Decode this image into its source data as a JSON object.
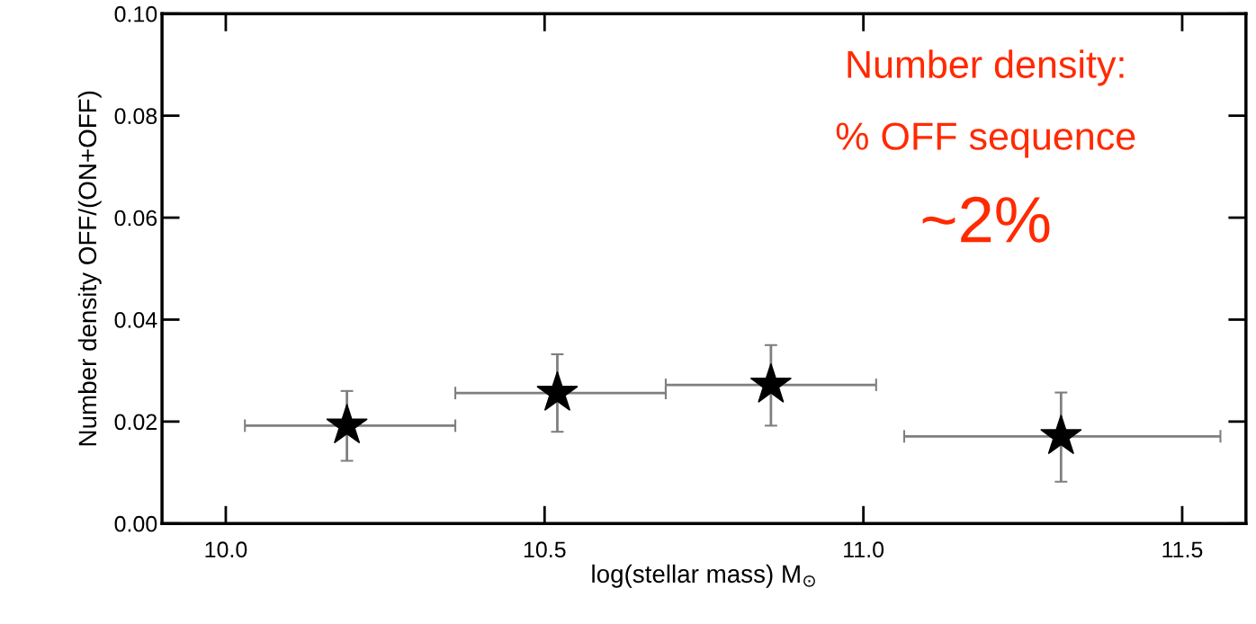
{
  "chart_data": {
    "type": "scatter",
    "xlabel": "log(stellar mass) M$_{⊙}$",
    "ylabel": "Number density OFF/(ON+OFF)",
    "x": [
      10.19,
      10.52,
      10.855,
      11.31
    ],
    "series": [
      {
        "color": "#000000",
        "values": [
          0.0192,
          0.0256,
          0.0272,
          0.0171
        ],
        "errors": [
          [
            0.0123,
            0.026
          ],
          [
            0.018,
            0.0332
          ],
          [
            0.0192,
            0.035
          ],
          [
            0.0082,
            0.0257
          ]
        ],
        "xerrors": [
          [
            10.03,
            10.36
          ],
          [
            10.36,
            10.69
          ],
          [
            10.69,
            11.02
          ],
          [
            11.064,
            11.56
          ]
        ]
      }
    ],
    "marker": "star",
    "xlim": [
      9.9,
      11.6
    ],
    "xticks": [
      {
        "value": 10.0,
        "label": "10.0"
      },
      10.5,
      {
        "value": 11.0,
        "label": "11.0"
      },
      11.5
    ],
    "ylim": [
      0.0,
      0.1
    ],
    "yticks": [
      {
        "value": 0.0,
        "label": "0.00"
      },
      {
        "value": 0.02,
        "label": "0.02"
      },
      {
        "value": 0.04,
        "label": "0.04"
      },
      {
        "value": 0.06,
        "label": "0.06"
      },
      {
        "value": 0.08,
        "label": "0.08"
      },
      {
        "value": 0.1,
        "label": "0.10"
      }
    ],
    "grid": false,
    "legend": false,
    "annotations": [
      "Number density:",
      "% OFF sequence",
      "~2%"
    ]
  }
}
